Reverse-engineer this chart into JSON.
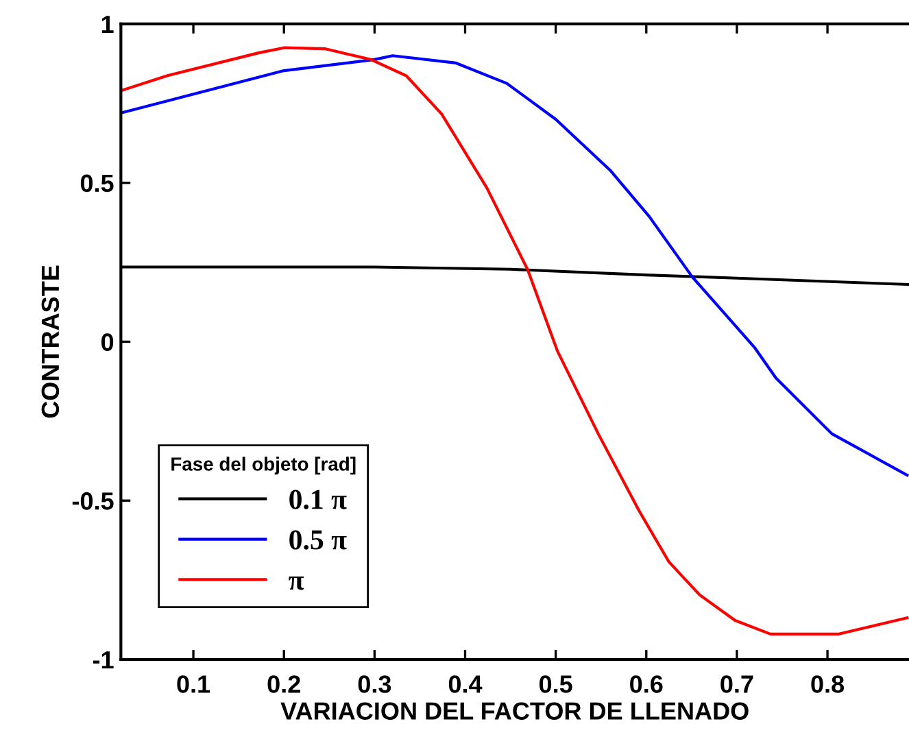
{
  "chart_data": {
    "type": "line",
    "xlabel": "VARIACION DEL FACTOR DE LLENADO",
    "ylabel": "CONTRASTE",
    "legend_title": "Fase del objeto [rad]",
    "legend": "bottom left",
    "grid": false,
    "marker": "none",
    "line_style": "solid",
    "xlim": [
      0.02,
      0.89
    ],
    "xticks": [
      0.1,
      0.2,
      0.3,
      0.4,
      0.5,
      0.6,
      0.7,
      0.8
    ],
    "ylim": [
      -1,
      1
    ],
    "yticks": [
      {
        "value": -1,
        "label": "-1"
      },
      {
        "value": -0.5,
        "label": "-0.5"
      },
      0,
      0.5,
      1
    ],
    "series": [
      {
        "name": "0.1 π",
        "color": "#000000",
        "x": [
          0.02,
          0.3,
          0.45,
          0.6,
          0.7,
          0.89
        ],
        "values": [
          0.235,
          0.235,
          0.228,
          0.21,
          0.2,
          0.18
        ]
      },
      {
        "name": "0.5 π",
        "color": "#0000ff",
        "x": [
          0.02,
          0.2,
          0.3,
          0.32,
          0.39,
          0.446,
          0.5,
          0.56,
          0.603,
          0.651,
          0.72,
          0.743,
          0.805,
          0.888
        ],
        "values": [
          0.72,
          0.853,
          0.888,
          0.9,
          0.877,
          0.813,
          0.7,
          0.54,
          0.395,
          0.203,
          -0.02,
          -0.114,
          -0.29,
          -0.42
        ]
      },
      {
        "name": "π",
        "color": "#ff0000",
        "x": [
          0.02,
          0.071,
          0.172,
          0.2,
          0.245,
          0.296,
          0.335,
          0.374,
          0.424,
          0.469,
          0.502,
          0.547,
          0.592,
          0.625,
          0.659,
          0.698,
          0.737,
          0.812,
          0.888
        ],
        "values": [
          0.79,
          0.837,
          0.909,
          0.925,
          0.922,
          0.888,
          0.837,
          0.717,
          0.484,
          0.227,
          -0.03,
          -0.29,
          -0.532,
          -0.693,
          -0.797,
          -0.877,
          -0.92,
          -0.92,
          -0.869
        ]
      }
    ]
  }
}
